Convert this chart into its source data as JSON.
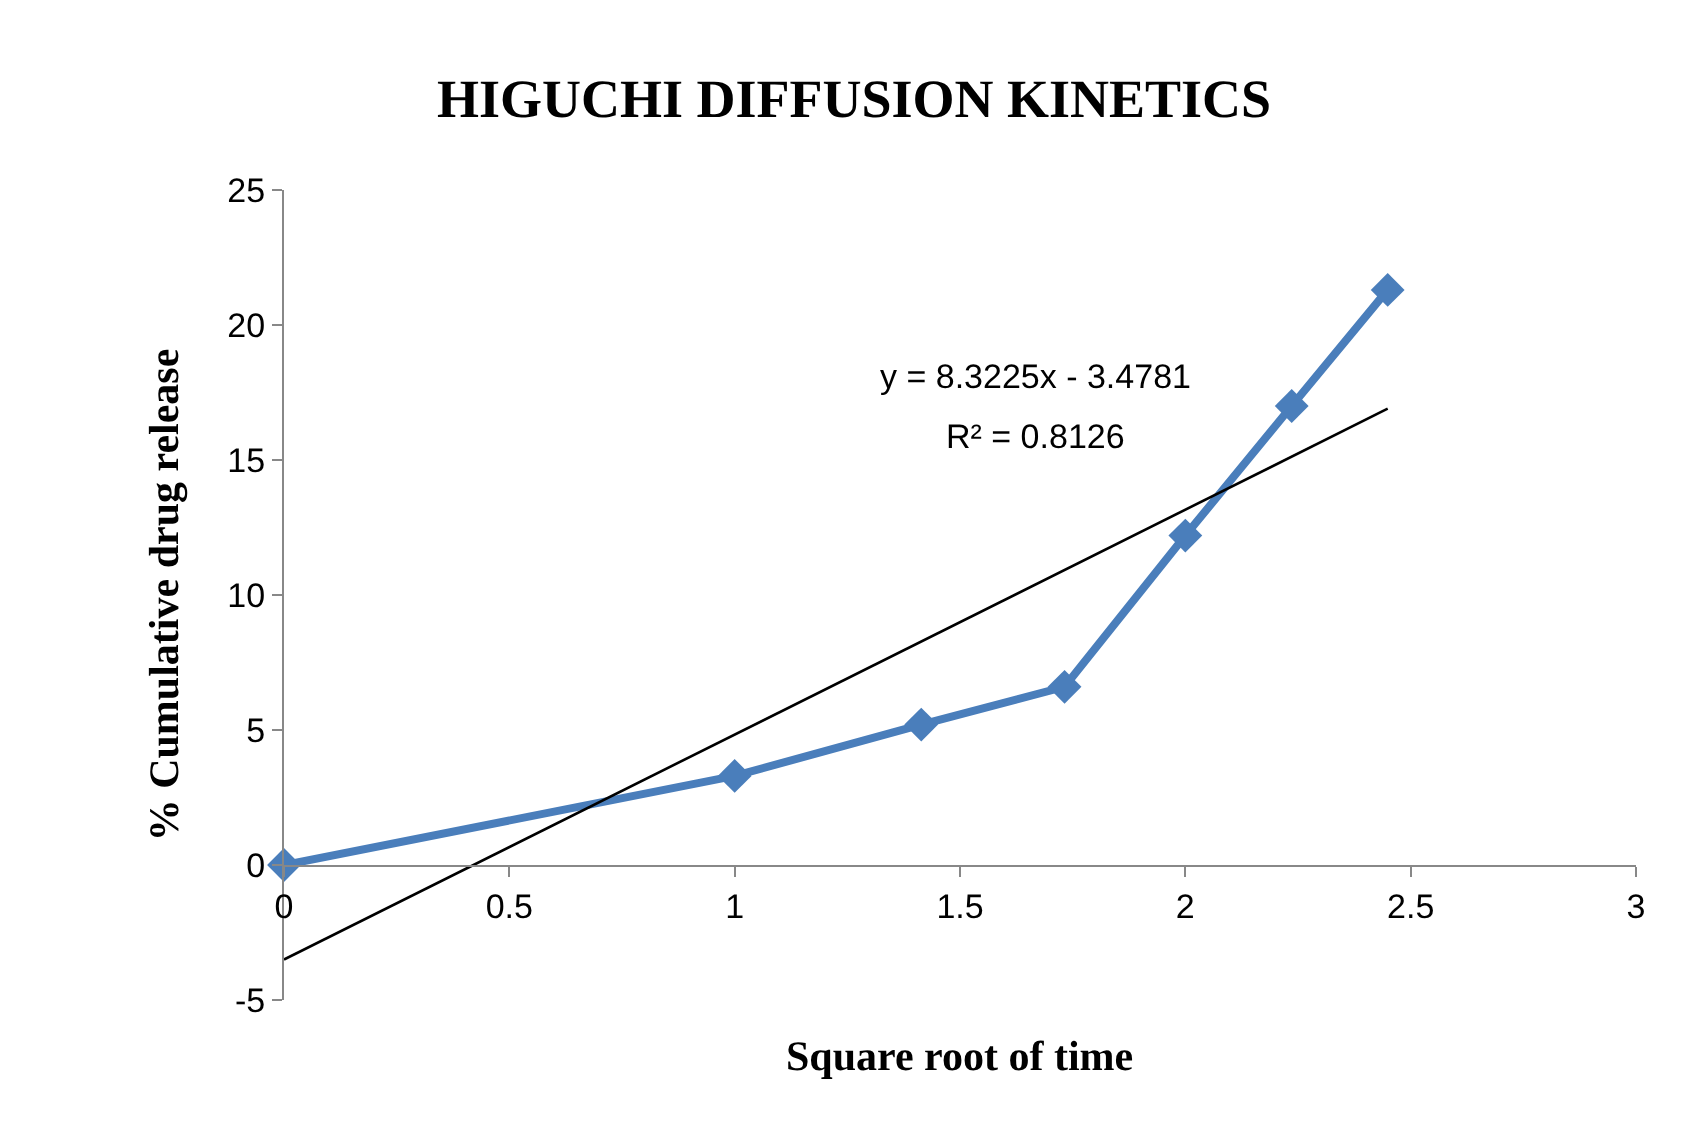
{
  "chart_data": {
    "type": "line",
    "title": "HIGUCHI DIFFUSION KINETICS",
    "xlabel": "Square root of time",
    "ylabel": "% Cumulative drug release",
    "x": [
      0,
      1,
      1.414,
      1.732,
      2,
      2.236,
      2.449
    ],
    "series": [
      {
        "color": "#4a7ebb",
        "values": [
          0,
          3.3,
          5.2,
          6.6,
          12.2,
          17.0,
          21.3
        ],
        "marker": "diamond",
        "line_style": "solid"
      },
      {
        "type": "line",
        "color": "#000000",
        "x": [
          0,
          2.449
        ],
        "values": [
          -3.5,
          16.9
        ],
        "marker": "none",
        "line_style": "solid"
      }
    ],
    "xlim": [
      0,
      3
    ],
    "xticks": [
      0,
      0.5,
      1,
      1.5,
      2,
      2.5,
      3
    ],
    "ylim": [
      -5,
      25
    ],
    "yticks": [
      -5,
      0,
      5,
      10,
      15,
      20,
      25
    ],
    "grid": false,
    "annotations": [
      "y = 8.3225x - 3.4781",
      "R² = 0.8126"
    ]
  }
}
